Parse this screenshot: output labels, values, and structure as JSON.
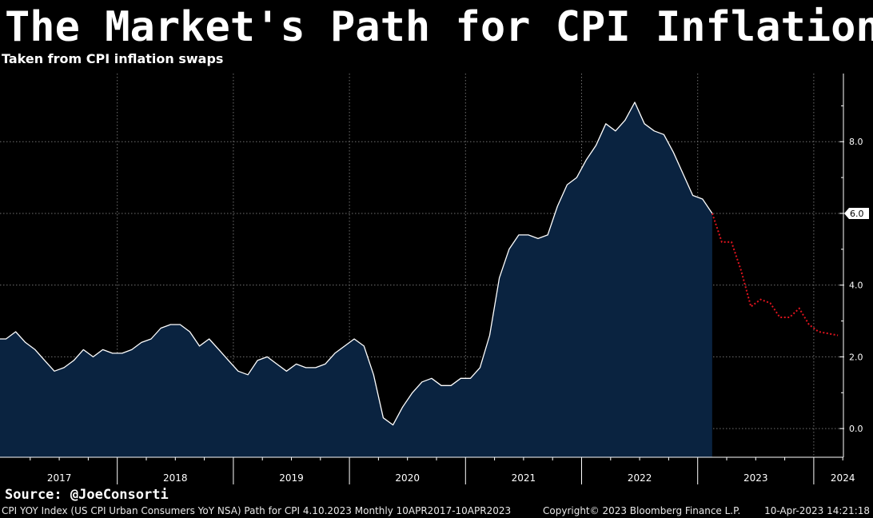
{
  "header": {
    "title": "The Market's Path for CPI Inflation",
    "subtitle": "Taken from CPI inflation swaps"
  },
  "source_label": "Source: @JoeConsorti",
  "footer": {
    "description": "CPI YOY Index (US CPI Urban Consumers YoY NSA) Path for CPI 4.10.2023  Monthly 10APR2017-10APR2023",
    "copyright": "Copyright© 2023 Bloomberg Finance L.P.",
    "timestamp": "10-Apr-2023 14:21:18"
  },
  "colors": {
    "background": "#000000",
    "area_fill": "#0a2340",
    "actual_line": "#ffffff",
    "forecast_line": "#e0141e",
    "grid": "#8c8c8c",
    "label_text": "#ffffff"
  },
  "chart_data": {
    "type": "area",
    "xlabel": "",
    "ylabel": "",
    "ylim": [
      -0.8,
      9.9
    ],
    "y_ticks": [
      0.0,
      2.0,
      4.0,
      6.0,
      8.0
    ],
    "y_tick_labels": [
      "0.0",
      "2.0",
      "4.0",
      "6.0",
      "8.0"
    ],
    "last_value_label": "6.0",
    "x_tick_labels": [
      "2017",
      "2018",
      "2019",
      "2020",
      "2021",
      "2022",
      "2023",
      "2024"
    ],
    "x_range": [
      "2017-01",
      "2024-06"
    ],
    "grid": true,
    "series": [
      {
        "style": "solid line with shaded area",
        "x": [
          "2017-01",
          "2017-02",
          "2017-03",
          "2017-04",
          "2017-05",
          "2017-06",
          "2017-07",
          "2017-08",
          "2017-09",
          "2017-10",
          "2017-11",
          "2017-12",
          "2018-01",
          "2018-02",
          "2018-03",
          "2018-04",
          "2018-05",
          "2018-06",
          "2018-07",
          "2018-08",
          "2018-09",
          "2018-10",
          "2018-11",
          "2018-12",
          "2019-01",
          "2019-02",
          "2019-03",
          "2019-04",
          "2019-05",
          "2019-06",
          "2019-07",
          "2019-08",
          "2019-09",
          "2019-10",
          "2019-11",
          "2019-12",
          "2020-01",
          "2020-02",
          "2020-03",
          "2020-04",
          "2020-05",
          "2020-06",
          "2020-07",
          "2020-08",
          "2020-09",
          "2020-10",
          "2020-11",
          "2020-12",
          "2021-01",
          "2021-02",
          "2021-03",
          "2021-04",
          "2021-05",
          "2021-06",
          "2021-07",
          "2021-08",
          "2021-09",
          "2021-10",
          "2021-11",
          "2021-12",
          "2022-01",
          "2022-02",
          "2022-03",
          "2022-04",
          "2022-05",
          "2022-06",
          "2022-07",
          "2022-08",
          "2022-09",
          "2022-10",
          "2022-11",
          "2022-12",
          "2023-01",
          "2023-02"
        ],
        "values": [
          2.5,
          2.7,
          2.4,
          2.2,
          1.9,
          1.6,
          1.7,
          1.9,
          2.2,
          2.0,
          2.2,
          2.1,
          2.1,
          2.2,
          2.4,
          2.5,
          2.8,
          2.9,
          2.9,
          2.7,
          2.3,
          2.5,
          2.2,
          1.9,
          1.6,
          1.5,
          1.9,
          2.0,
          1.8,
          1.6,
          1.8,
          1.7,
          1.7,
          1.8,
          2.1,
          2.3,
          2.5,
          2.3,
          1.5,
          0.3,
          0.1,
          0.6,
          1.0,
          1.3,
          1.4,
          1.2,
          1.2,
          1.4,
          1.4,
          1.7,
          2.6,
          4.2,
          5.0,
          5.4,
          5.4,
          5.3,
          5.4,
          6.2,
          6.8,
          7.0,
          7.5,
          7.9,
          8.5,
          8.3,
          8.6,
          9.1,
          8.5,
          8.3,
          8.2,
          7.7,
          7.1,
          6.5,
          6.4,
          6.0
        ]
      },
      {
        "style": "dotted forecast line",
        "x": [
          "2023-02",
          "2023-03",
          "2023-04",
          "2023-05",
          "2023-06",
          "2023-07",
          "2023-08",
          "2023-09",
          "2023-10",
          "2023-11",
          "2023-12",
          "2024-01",
          "2024-02",
          "2024-03"
        ],
        "values": [
          6.0,
          5.2,
          5.2,
          4.4,
          3.4,
          3.6,
          3.5,
          3.1,
          3.1,
          3.35,
          2.9,
          2.7,
          2.65,
          2.6
        ]
      }
    ]
  }
}
